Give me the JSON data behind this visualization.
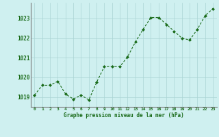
{
  "x": [
    0,
    1,
    2,
    3,
    4,
    5,
    6,
    7,
    8,
    9,
    10,
    11,
    12,
    13,
    14,
    15,
    16,
    17,
    18,
    19,
    20,
    21,
    22,
    23
  ],
  "y": [
    1019.1,
    1019.6,
    1019.6,
    1019.8,
    1019.15,
    1018.9,
    1019.1,
    1018.85,
    1019.75,
    1020.55,
    1020.55,
    1020.55,
    1021.05,
    1021.8,
    1022.45,
    1023.05,
    1023.05,
    1022.7,
    1022.35,
    1022.0,
    1021.9,
    1022.45,
    1023.15,
    1023.5
  ],
  "line_color": "#1a6b1a",
  "marker_color": "#1a6b1a",
  "bg_color": "#cff0f0",
  "grid_color": "#aad4d4",
  "xlabel": "Graphe pression niveau de la mer (hPa)",
  "xlabel_color": "#1a6b1a",
  "tick_color": "#1a6b1a",
  "ylim": [
    1018.5,
    1023.8
  ],
  "yticks": [
    1019,
    1020,
    1021,
    1022,
    1023
  ],
  "xticks": [
    0,
    1,
    2,
    3,
    4,
    5,
    6,
    7,
    8,
    9,
    10,
    11,
    12,
    13,
    14,
    15,
    16,
    17,
    18,
    19,
    20,
    21,
    22,
    23
  ],
  "axis_color": "#777777"
}
